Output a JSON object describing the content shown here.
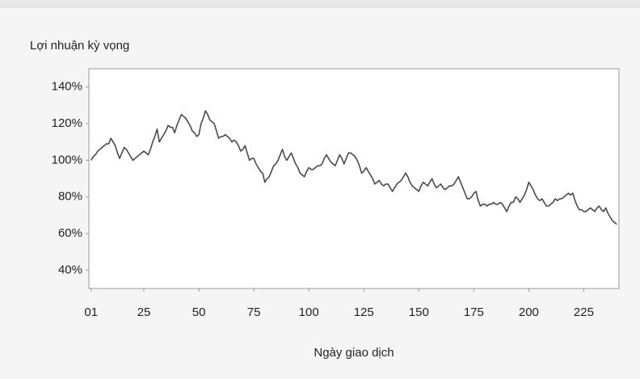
{
  "chart_data": {
    "type": "line",
    "title": "Lợi nhuận kỳ vọng",
    "x_label": "Ngày giao dịch",
    "color": "#4a4a4a",
    "x": [
      1,
      2,
      3,
      4,
      5,
      6,
      7,
      8,
      9,
      10,
      11,
      12,
      13,
      14,
      15,
      16,
      17,
      18,
      19,
      20,
      21,
      22,
      23,
      24,
      25,
      26,
      27,
      28,
      29,
      30,
      31,
      32,
      33,
      34,
      35,
      36,
      37,
      38,
      39,
      40,
      41,
      42,
      43,
      44,
      45,
      46,
      47,
      48,
      49,
      50,
      51,
      52,
      53,
      54,
      55,
      56,
      57,
      58,
      59,
      60,
      61,
      62,
      63,
      64,
      65,
      66,
      67,
      68,
      69,
      70,
      71,
      72,
      73,
      74,
      75,
      76,
      77,
      78,
      79,
      80,
      81,
      82,
      83,
      84,
      85,
      86,
      87,
      88,
      89,
      90,
      91,
      92,
      93,
      94,
      95,
      96,
      97,
      98,
      99,
      100,
      101,
      102,
      103,
      104,
      105,
      106,
      107,
      108,
      109,
      110,
      111,
      112,
      113,
      114,
      115,
      116,
      117,
      118,
      119,
      120,
      121,
      122,
      123,
      124,
      125,
      126,
      127,
      128,
      129,
      130,
      131,
      132,
      133,
      134,
      135,
      136,
      137,
      138,
      139,
      140,
      141,
      142,
      143,
      144,
      145,
      146,
      147,
      148,
      149,
      150,
      151,
      152,
      153,
      154,
      155,
      156,
      157,
      158,
      159,
      160,
      161,
      162,
      163,
      164,
      165,
      166,
      167,
      168,
      169,
      170,
      171,
      172,
      173,
      174,
      175,
      176,
      177,
      178,
      179,
      180,
      181,
      182,
      183,
      184,
      185,
      186,
      187,
      188,
      189,
      190,
      191,
      192,
      193,
      194,
      195,
      196,
      197,
      198,
      199,
      200,
      201,
      202,
      203,
      204,
      205,
      206,
      207,
      208,
      209,
      210,
      211,
      212,
      213,
      214,
      215,
      216,
      217,
      218,
      219,
      220,
      221,
      222,
      223,
      224,
      225,
      226,
      227,
      228,
      229,
      230,
      231,
      232,
      233,
      234,
      235,
      236,
      237,
      238,
      239,
      240
    ],
    "values": [
      100,
      102,
      103,
      105,
      106,
      107,
      108,
      109,
      109,
      112,
      110,
      108,
      104,
      101,
      104,
      107,
      106,
      104,
      102,
      100,
      101,
      102,
      103,
      104,
      105,
      104,
      103,
      106,
      110,
      113,
      117,
      110,
      112,
      114,
      116,
      119,
      118,
      118,
      115,
      119,
      122,
      125,
      124,
      123,
      121,
      119,
      116,
      115,
      113,
      114,
      120,
      123,
      127,
      125,
      122,
      121,
      120,
      116,
      112,
      113,
      113,
      114,
      113,
      112,
      110,
      111,
      110,
      108,
      105,
      106,
      108,
      104,
      100,
      101,
      101,
      98,
      96,
      94,
      93,
      88,
      90,
      91,
      94,
      97,
      98,
      100,
      103,
      106,
      102,
      100,
      102,
      104,
      101,
      98,
      96,
      93,
      92,
      91,
      94,
      96,
      95,
      95,
      96,
      97,
      97,
      98,
      101,
      103,
      101,
      99,
      98,
      97,
      100,
      103,
      101,
      98,
      101,
      104,
      104,
      103,
      102,
      100,
      97,
      93,
      94,
      96,
      94,
      92,
      90,
      87,
      88,
      89,
      87,
      86,
      87,
      87,
      85,
      83,
      85,
      87,
      88,
      89,
      91,
      93,
      91,
      88,
      86,
      85,
      84,
      83,
      86,
      88,
      87,
      86,
      88,
      90,
      87,
      85,
      86,
      87,
      85,
      84,
      85,
      86,
      86,
      87,
      89,
      91,
      88,
      85,
      82,
      79,
      79,
      80,
      82,
      83,
      78,
      75,
      76,
      76,
      75,
      76,
      76,
      77,
      76,
      76,
      77,
      76,
      74,
      72,
      75,
      77,
      77,
      80,
      79,
      77,
      79,
      81,
      84,
      88,
      86,
      84,
      81,
      79,
      78,
      79,
      77,
      75,
      75,
      76,
      77,
      79,
      78,
      79,
      79,
      80,
      81,
      82,
      81,
      82,
      78,
      75,
      73,
      73,
      72,
      72,
      73,
      74,
      73,
      72,
      74,
      75,
      73,
      72,
      74,
      71,
      69,
      67,
      66,
      65
    ],
    "xlim": [
      0,
      241
    ],
    "xticks": [
      {
        "value": 1,
        "label": "01"
      },
      25,
      50,
      75,
      100,
      125,
      150,
      175,
      200,
      225
    ],
    "ylim": [
      30,
      150
    ],
    "yticks": [
      {
        "value": 40,
        "label": "40%"
      },
      {
        "value": 60,
        "label": "60%"
      },
      {
        "value": 80,
        "label": "80%"
      },
      {
        "value": 100,
        "label": "100%"
      },
      {
        "value": 120,
        "label": "120%"
      },
      {
        "value": 140,
        "label": "140%"
      }
    ]
  }
}
